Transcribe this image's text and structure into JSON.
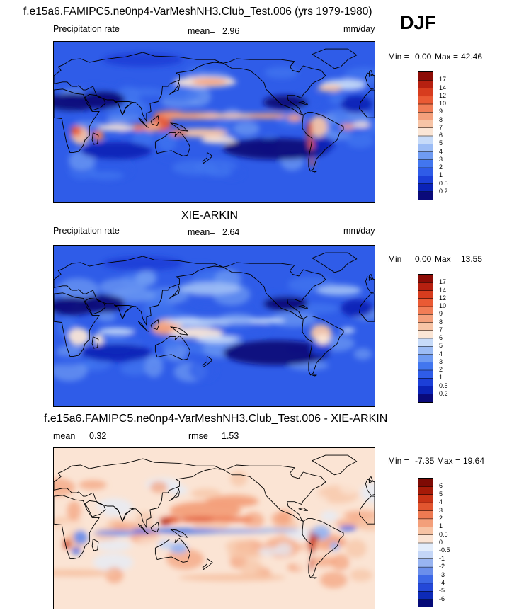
{
  "figure_title": "f.e15a6.FAMIPC5.ne0np4-VarMeshNH3.Club_Test.006 (yrs 1979-1980)",
  "season": "DJF",
  "chart_data": [
    {
      "type": "heatmap",
      "title": "f.e15a6.FAMIPC5.ne0np4-VarMeshNH3.Club_Test.006 (yrs 1979-1980)",
      "variable": "Precipitation rate",
      "mean_label": "mean=",
      "mean": "2.96",
      "units": "mm/day",
      "min_label": "Min =",
      "min": "0.00",
      "max_label": "Max =",
      "max": "42.46",
      "levels": [
        "0.2",
        "0.5",
        "1",
        "2",
        "3",
        "4",
        "5",
        "6",
        "7",
        "8",
        "9",
        "10",
        "12",
        "14",
        "17"
      ],
      "colors": [
        "#0a0a7a",
        "#0b23b7",
        "#1c3fd8",
        "#2f5ce8",
        "#4276ef",
        "#6f9bf2",
        "#9cbcf5",
        "#c7dbf9",
        "#fbe6d6",
        "#f7c4a6",
        "#f4a07c",
        "#f17d56",
        "#ea5a34",
        "#d73c1e",
        "#b62010",
        "#8c0c06"
      ]
    },
    {
      "type": "heatmap",
      "title": "XIE-ARKIN",
      "variable": "Precipitation rate",
      "mean_label": "mean=",
      "mean": "2.64",
      "units": "mm/day",
      "min_label": "Min =",
      "min": "0.00",
      "max_label": "Max =",
      "max": "13.55",
      "levels": [
        "0.2",
        "0.5",
        "1",
        "2",
        "3",
        "4",
        "5",
        "6",
        "7",
        "8",
        "9",
        "10",
        "12",
        "14",
        "17"
      ],
      "colors": [
        "#0a0a7a",
        "#0b23b7",
        "#1c3fd8",
        "#2f5ce8",
        "#4276ef",
        "#6f9bf2",
        "#9cbcf5",
        "#c7dbf9",
        "#fbe6d6",
        "#f7c4a6",
        "#f4a07c",
        "#f17d56",
        "#ea5a34",
        "#d73c1e",
        "#b62010",
        "#8c0c06"
      ]
    },
    {
      "type": "heatmap",
      "title": "f.e15a6.FAMIPC5.ne0np4-VarMeshNH3.Club_Test.006 - XIE-ARKIN",
      "mean_label": "mean =",
      "mean": "0.32",
      "rmse_label": "rmse =",
      "rmse": "1.53",
      "min_label": "Min =",
      "min": "-7.35",
      "max_label": "Max =",
      "max": "19.64",
      "levels": [
        "-6",
        "-5",
        "-4",
        "-3",
        "-2",
        "-1",
        "-0.5",
        "0",
        "0.5",
        "1",
        "2",
        "3",
        "4",
        "5",
        "6"
      ],
      "colors": [
        "#050a78",
        "#0d2ab8",
        "#2448d8",
        "#3d68e6",
        "#6b8feb",
        "#98b4f1",
        "#c4d6f7",
        "#e3edfb",
        "#fbe4d4",
        "#f7c3a4",
        "#f39f7a",
        "#ee7a52",
        "#e2552f",
        "#c83316",
        "#a51a08",
        "#7e0a04"
      ]
    }
  ]
}
